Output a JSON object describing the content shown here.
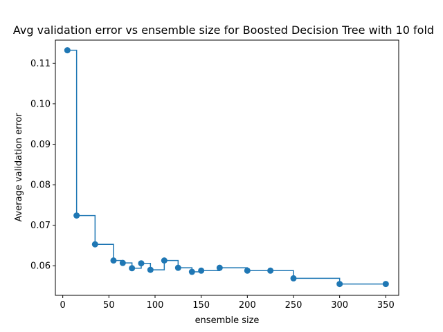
{
  "chart_data": {
    "type": "line",
    "title": "Avg validation error vs ensemble size for Boosted Decision Tree with 10 fold",
    "xlabel": "ensemble size",
    "ylabel": "Average validation error",
    "xlim": [
      -8,
      364
    ],
    "ylim": [
      0.0527,
      0.1157
    ],
    "x_ticks": [
      0,
      50,
      100,
      150,
      200,
      250,
      300,
      350
    ],
    "x_tick_labels": [
      "0",
      "50",
      "100",
      "150",
      "200",
      "250",
      "300",
      "350"
    ],
    "y_ticks": [
      0.06,
      0.07,
      0.08,
      0.09,
      0.1,
      0.11
    ],
    "y_tick_labels": [
      "0.06",
      "0.07",
      "0.08",
      "0.09",
      "0.10",
      "0.11"
    ],
    "grid": false,
    "legend": "none",
    "line_style": "step-post",
    "markers": "circle",
    "series": [
      {
        "color": "#1f77b4",
        "x": [
          5,
          15,
          35,
          55,
          65,
          75,
          85,
          95,
          110,
          125,
          140,
          150,
          170,
          200,
          225,
          250,
          300,
          350
        ],
        "y": [
          0.1132,
          0.0724,
          0.0653,
          0.0613,
          0.0607,
          0.0594,
          0.0606,
          0.059,
          0.0613,
          0.0595,
          0.0585,
          0.0588,
          0.0595,
          0.0588,
          0.0588,
          0.0569,
          0.0555,
          0.0555
        ]
      }
    ]
  }
}
